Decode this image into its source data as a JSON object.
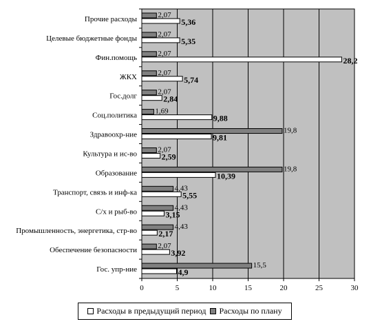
{
  "chart_data": {
    "type": "bar",
    "orientation": "horizontal",
    "categories": [
      "Прочие расходы",
      "Целевые бюджетные фонды",
      "Фин.помощь",
      "ЖКХ",
      "Гос.долг",
      "Соц.политика",
      "Здравоохр-ние",
      "Культура и ис-во",
      "Образование",
      "Транспорт, связь и инф-ка",
      "С/х и рыб-во",
      "Промышленность, энергетика, стр-во",
      "Обеспечение безопасности",
      "Гос. упр-ние"
    ],
    "series": [
      {
        "name": "Расходы по плану",
        "color": "#808080",
        "values": [
          2.07,
          2.07,
          2.07,
          2.07,
          2.07,
          1.69,
          19.8,
          2.07,
          19.8,
          4.43,
          4.43,
          4.43,
          2.07,
          15.5
        ],
        "labels": [
          "2,07",
          "2,07",
          "2,07",
          "2,07",
          "2,07",
          "1,69",
          "19,8",
          "2,07",
          "19,8",
          "4,43",
          "4,43",
          "4,43",
          "2,07",
          "15,5"
        ]
      },
      {
        "name": "Расходы в предыдущий период",
        "color": "#ffffff",
        "values": [
          5.36,
          5.35,
          28.2,
          5.74,
          2.84,
          9.88,
          9.81,
          2.59,
          10.39,
          5.55,
          3.15,
          2.17,
          3.92,
          4.9
        ],
        "labels": [
          "5,36",
          "5,35",
          "28,2",
          "5,74",
          "2,84",
          "9,88",
          "9,81",
          "2,59",
          "10,39",
          "5,55",
          "3,15",
          "2,17",
          "3,92",
          "4,9"
        ]
      }
    ],
    "xlim": [
      0,
      30
    ],
    "xticks": [
      "0",
      "5",
      "10",
      "15",
      "20",
      "25",
      "30"
    ],
    "grid": true,
    "plot_background": "#c0c0c0",
    "legend": {
      "position": "bottom",
      "items": [
        "Расходы в предыдущий период",
        "Расходы по плану"
      ]
    }
  }
}
